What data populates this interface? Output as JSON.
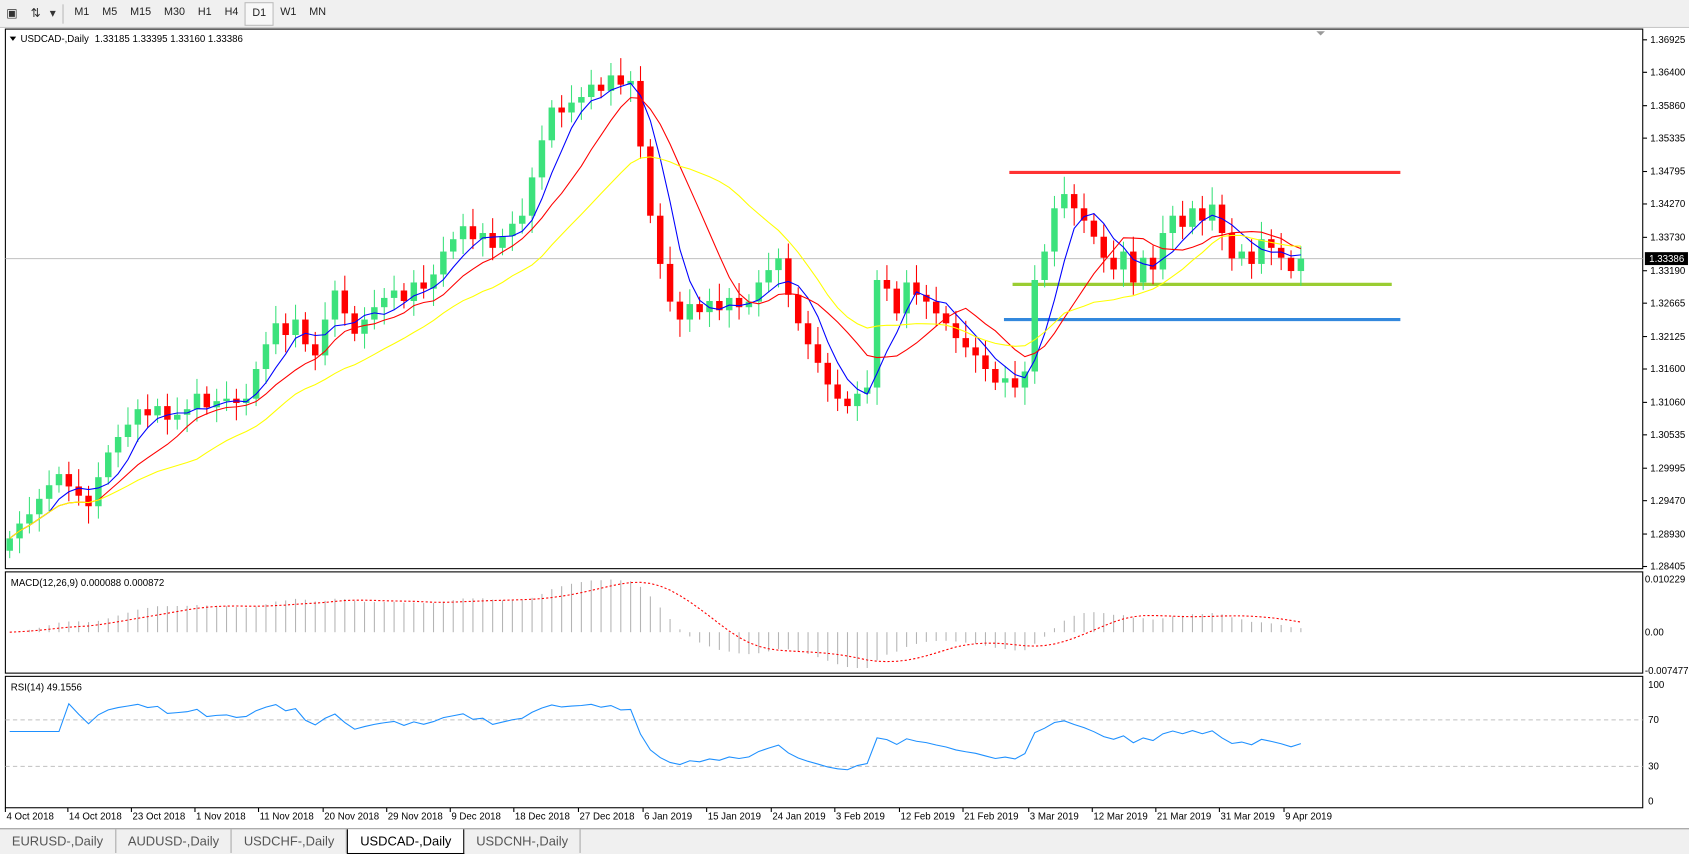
{
  "toolbar": {
    "icons": [
      "text-tool-icon",
      "arrows-tool-icon",
      "dropdown-icon"
    ],
    "timeframes": [
      "M1",
      "M5",
      "M15",
      "M30",
      "H1",
      "H4",
      "D1",
      "W1",
      "MN"
    ],
    "active": "D1"
  },
  "main": {
    "title": "USDCAD-,Daily",
    "ohlc": "1.33185 1.33395 1.33160 1.33386",
    "current_price": "1.33386",
    "price_ticks": [
      "1.36925",
      "1.36400",
      "1.35860",
      "1.35335",
      "1.34795",
      "1.34270",
      "1.33730",
      "1.33190",
      "1.32665",
      "1.32125",
      "1.31600",
      "1.31060",
      "1.30535",
      "1.29995",
      "1.29470",
      "1.28930",
      "1.28405"
    ],
    "levels": [
      {
        "price": 1.3478,
        "color": "#ff3333"
      },
      {
        "price": 1.3297,
        "color": "#9acd32"
      },
      {
        "price": 1.324,
        "color": "#3388dd"
      }
    ],
    "ma_colors": {
      "fast": "#0000ff",
      "mid": "#ff0000",
      "slow": "#ffff00"
    },
    "bull_color": "#3ce27c",
    "bear_color": "#ff0000"
  },
  "macd": {
    "title": "MACD(12,26,9) 0.000088 0.000872",
    "ticks": [
      "0.010229",
      "0.00",
      "-0.007477"
    ]
  },
  "rsi": {
    "title": "RSI(14) 49.1556",
    "ticks": [
      "100",
      "70",
      "30",
      "0"
    ]
  },
  "dates": [
    "4 Oct 2018",
    "14 Oct 2018",
    "23 Oct 2018",
    "1 Nov 2018",
    "11 Nov 2018",
    "20 Nov 2018",
    "29 Nov 2018",
    "9 Dec 2018",
    "18 Dec 2018",
    "27 Dec 2018",
    "6 Jan 2019",
    "15 Jan 2019",
    "24 Jan 2019",
    "3 Feb 2019",
    "12 Feb 2019",
    "21 Feb 2019",
    "3 Mar 2019",
    "12 Mar 2019",
    "21 Mar 2019",
    "31 Mar 2019",
    "9 Apr 2019"
  ],
  "tabs": [
    "EURUSD-,Daily",
    "AUDUSD-,Daily",
    "USDCHF-,Daily",
    "USDCAD-,Daily",
    "USDCNH-,Daily"
  ],
  "active_tab": "USDCAD-,Daily",
  "chart_data": {
    "type": "candlestick",
    "symbol": "USDCAD",
    "timeframe": "Daily",
    "ylim": [
      1.28405,
      1.36925
    ],
    "closes": [
      1.2886,
      1.291,
      1.2925,
      1.295,
      1.2972,
      1.299,
      1.297,
      1.2955,
      1.2938,
      1.2985,
      1.3025,
      1.305,
      1.307,
      1.3095,
      1.3085,
      1.31,
      1.3078,
      1.3086,
      1.3095,
      1.312,
      1.3098,
      1.3108,
      1.3112,
      1.3105,
      1.3112,
      1.316,
      1.32,
      1.3234,
      1.3215,
      1.324,
      1.32,
      1.3182,
      1.324,
      1.3287,
      1.325,
      1.3217,
      1.324,
      1.326,
      1.3275,
      1.3287,
      1.327,
      1.33,
      1.329,
      1.3313,
      1.335,
      1.337,
      1.3391,
      1.337,
      1.338,
      1.3356,
      1.3375,
      1.3395,
      1.3408,
      1.347,
      1.353,
      1.3583,
      1.3575,
      1.3591,
      1.36,
      1.362,
      1.361,
      1.3635,
      1.362,
      1.3626,
      1.352,
      1.3408,
      1.333,
      1.3269,
      1.324,
      1.3265,
      1.3252,
      1.327,
      1.3255,
      1.3275,
      1.326,
      1.3269,
      1.33,
      1.332,
      1.3339,
      1.328,
      1.3234,
      1.32,
      1.317,
      1.3135,
      1.3112,
      1.31,
      1.312,
      1.313,
      1.3304,
      1.329,
      1.325,
      1.33,
      1.328,
      1.3269,
      1.325,
      1.3234,
      1.321,
      1.3195,
      1.3182,
      1.316,
      1.3138,
      1.3145,
      1.313,
      1.3156,
      1.3304,
      1.335,
      1.342,
      1.3443,
      1.342,
      1.34,
      1.3374,
      1.334,
      1.3321,
      1.335,
      1.33,
      1.334,
      1.3321,
      1.338,
      1.3408,
      1.339,
      1.342,
      1.34,
      1.3426,
      1.338,
      1.3339,
      1.335,
      1.333,
      1.337,
      1.3356,
      1.334,
      1.33185,
      1.33386
    ]
  }
}
